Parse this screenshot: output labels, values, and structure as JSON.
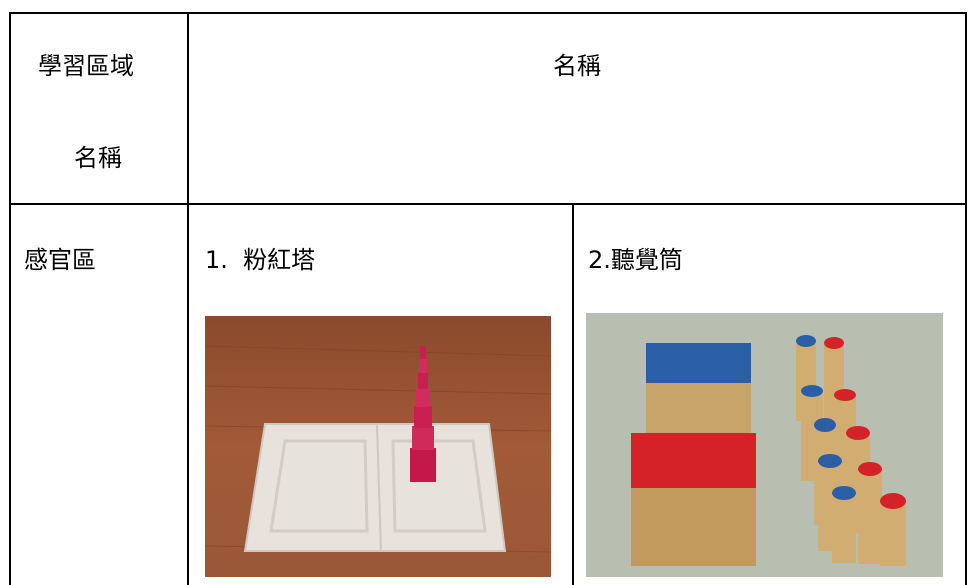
{
  "header": {
    "area_label_lines": [
      "學習區域",
      "名稱"
    ],
    "name_label": "名稱"
  },
  "rows": [
    {
      "area": "感官區",
      "items": [
        "1.  粉紅塔",
        "2.聽覺筒"
      ]
    }
  ]
}
